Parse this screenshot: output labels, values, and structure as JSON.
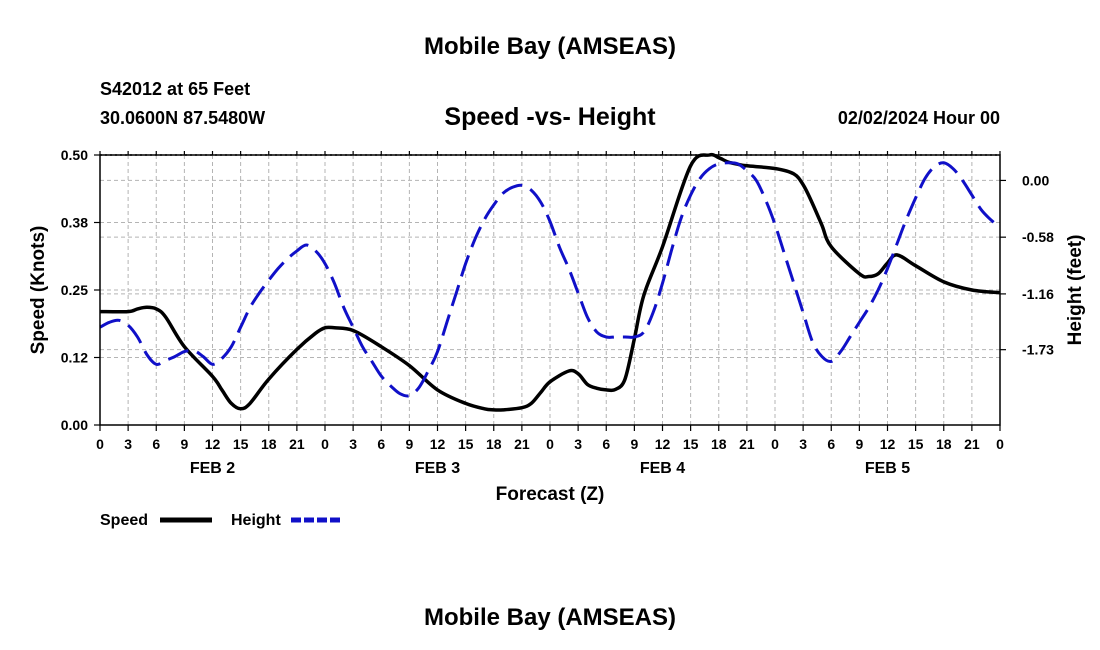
{
  "header": {
    "title": "Mobile Bay (AMSEAS)",
    "station": "S42012 at 65 Feet",
    "coords": "30.0600N  87.5480W",
    "chart_title": "Speed -vs- Height",
    "date": "02/02/2024 Hour 00"
  },
  "footer": {
    "title": "Mobile Bay (AMSEAS)"
  },
  "legend": {
    "speed": "Speed",
    "height": "Height"
  },
  "colors": {
    "speed": "#000000",
    "height": "#1010c8",
    "grid": "#b4b4b4"
  },
  "chart_data": {
    "type": "line",
    "title": "Speed -vs- Height",
    "xlabel": "Forecast (Z)",
    "ylabel": "Speed (Knots)",
    "y2label": "Height (feet)",
    "xlim": [
      0,
      96
    ],
    "ylim": [
      0,
      0.5
    ],
    "y2lim": [
      -2.5,
      0.26
    ],
    "x_ticks": [
      0,
      3,
      6,
      9,
      12,
      15,
      18,
      21,
      24,
      27,
      30,
      33,
      36,
      39,
      42,
      45,
      48,
      51,
      54,
      57,
      60,
      63,
      66,
      69,
      72,
      75,
      78,
      81,
      84,
      87,
      90,
      93,
      96
    ],
    "x_tick_labels": [
      "0",
      "3",
      "6",
      "9",
      "12",
      "15",
      "18",
      "21",
      "0",
      "3",
      "6",
      "9",
      "12",
      "15",
      "18",
      "21",
      "0",
      "3",
      "6",
      "9",
      "12",
      "15",
      "18",
      "21",
      "0",
      "3",
      "6",
      "9",
      "12",
      "15",
      "18",
      "21",
      "0"
    ],
    "day_labels": [
      {
        "x": 12,
        "label": "FEB 2"
      },
      {
        "x": 36,
        "label": "FEB 3"
      },
      {
        "x": 60,
        "label": "FEB 4"
      },
      {
        "x": 84,
        "label": "FEB 5"
      }
    ],
    "y_ticks": [
      0,
      0.125,
      0.25,
      0.375,
      0.5
    ],
    "y_tick_labels": [
      "0.00",
      "0.12",
      "0.25",
      "0.38",
      "0.50"
    ],
    "y2_ticks": [
      0,
      -0.58,
      -1.16,
      -1.73
    ],
    "y2_tick_labels": [
      "0.00",
      "-0.58",
      "-1.16",
      "-1.73"
    ],
    "series": [
      {
        "name": "Speed",
        "axis": "left",
        "style": "solid",
        "x": [
          0,
          3,
          4,
          5,
          6,
          7,
          9,
          12,
          13,
          14,
          15,
          16,
          18,
          21,
          23,
          24,
          25,
          27,
          30,
          33,
          36,
          39,
          41,
          42,
          43,
          45,
          46,
          47,
          48,
          50,
          51,
          52,
          53,
          54,
          55,
          56,
          57,
          58,
          60,
          63,
          65,
          66,
          67,
          68,
          69,
          72,
          74,
          75,
          76,
          77,
          78,
          81,
          82,
          83,
          84,
          85,
          87,
          90,
          93,
          96
        ],
        "y": [
          0.21,
          0.21,
          0.215,
          0.218,
          0.215,
          0.2,
          0.145,
          0.09,
          0.065,
          0.04,
          0.03,
          0.04,
          0.085,
          0.14,
          0.17,
          0.18,
          0.18,
          0.175,
          0.145,
          0.11,
          0.065,
          0.04,
          0.03,
          0.028,
          0.028,
          0.032,
          0.04,
          0.06,
          0.08,
          0.1,
          0.095,
          0.075,
          0.068,
          0.065,
          0.066,
          0.085,
          0.16,
          0.24,
          0.33,
          0.48,
          0.5,
          0.495,
          0.487,
          0.483,
          0.48,
          0.475,
          0.465,
          0.445,
          0.41,
          0.37,
          0.33,
          0.28,
          0.275,
          0.28,
          0.3,
          0.315,
          0.295,
          0.265,
          0.25,
          0.245
        ]
      },
      {
        "name": "Height",
        "axis": "right",
        "style": "dashed",
        "x": [
          0,
          1,
          2,
          3,
          4,
          5,
          6,
          7,
          8,
          9,
          10,
          11,
          12,
          13,
          14,
          15,
          16,
          17,
          18,
          19,
          20,
          21,
          22,
          23,
          24,
          25,
          26,
          27,
          28,
          29,
          30,
          31,
          32,
          33,
          34,
          35,
          36,
          37,
          38,
          39,
          40,
          41,
          42,
          43,
          44,
          45,
          46,
          47,
          48,
          49,
          50,
          51,
          52,
          53,
          54,
          55,
          56,
          57,
          58,
          59,
          60,
          61,
          62,
          63,
          64,
          65,
          66,
          67,
          68,
          69,
          70,
          71,
          72,
          73,
          74,
          75,
          76,
          77,
          78,
          79,
          80,
          81,
          82,
          83,
          84,
          85,
          86,
          87,
          88,
          89,
          90,
          91,
          92,
          93,
          94,
          95,
          96
        ],
        "y": [
          -1.5,
          -1.45,
          -1.43,
          -1.48,
          -1.6,
          -1.78,
          -1.88,
          -1.84,
          -1.8,
          -1.75,
          -1.74,
          -1.8,
          -1.88,
          -1.82,
          -1.7,
          -1.5,
          -1.3,
          -1.15,
          -1.02,
          -0.9,
          -0.8,
          -0.72,
          -0.66,
          -0.72,
          -0.85,
          -1.05,
          -1.3,
          -1.5,
          -1.7,
          -1.85,
          -2.0,
          -2.1,
          -2.18,
          -2.2,
          -2.12,
          -1.95,
          -1.75,
          -1.45,
          -1.15,
          -0.85,
          -0.6,
          -0.4,
          -0.25,
          -0.13,
          -0.07,
          -0.05,
          -0.1,
          -0.22,
          -0.42,
          -0.68,
          -0.9,
          -1.15,
          -1.4,
          -1.55,
          -1.6,
          -1.6,
          -1.6,
          -1.6,
          -1.55,
          -1.35,
          -1.05,
          -0.7,
          -0.38,
          -0.15,
          0.02,
          0.12,
          0.17,
          0.18,
          0.17,
          0.1,
          0.0,
          -0.2,
          -0.45,
          -0.75,
          -1.05,
          -1.35,
          -1.65,
          -1.8,
          -1.85,
          -1.75,
          -1.6,
          -1.45,
          -1.3,
          -1.12,
          -0.9,
          -0.65,
          -0.4,
          -0.18,
          0.02,
          0.14,
          0.18,
          0.12,
          0.0,
          -0.15,
          -0.3,
          -0.4,
          -0.48
        ]
      }
    ]
  }
}
